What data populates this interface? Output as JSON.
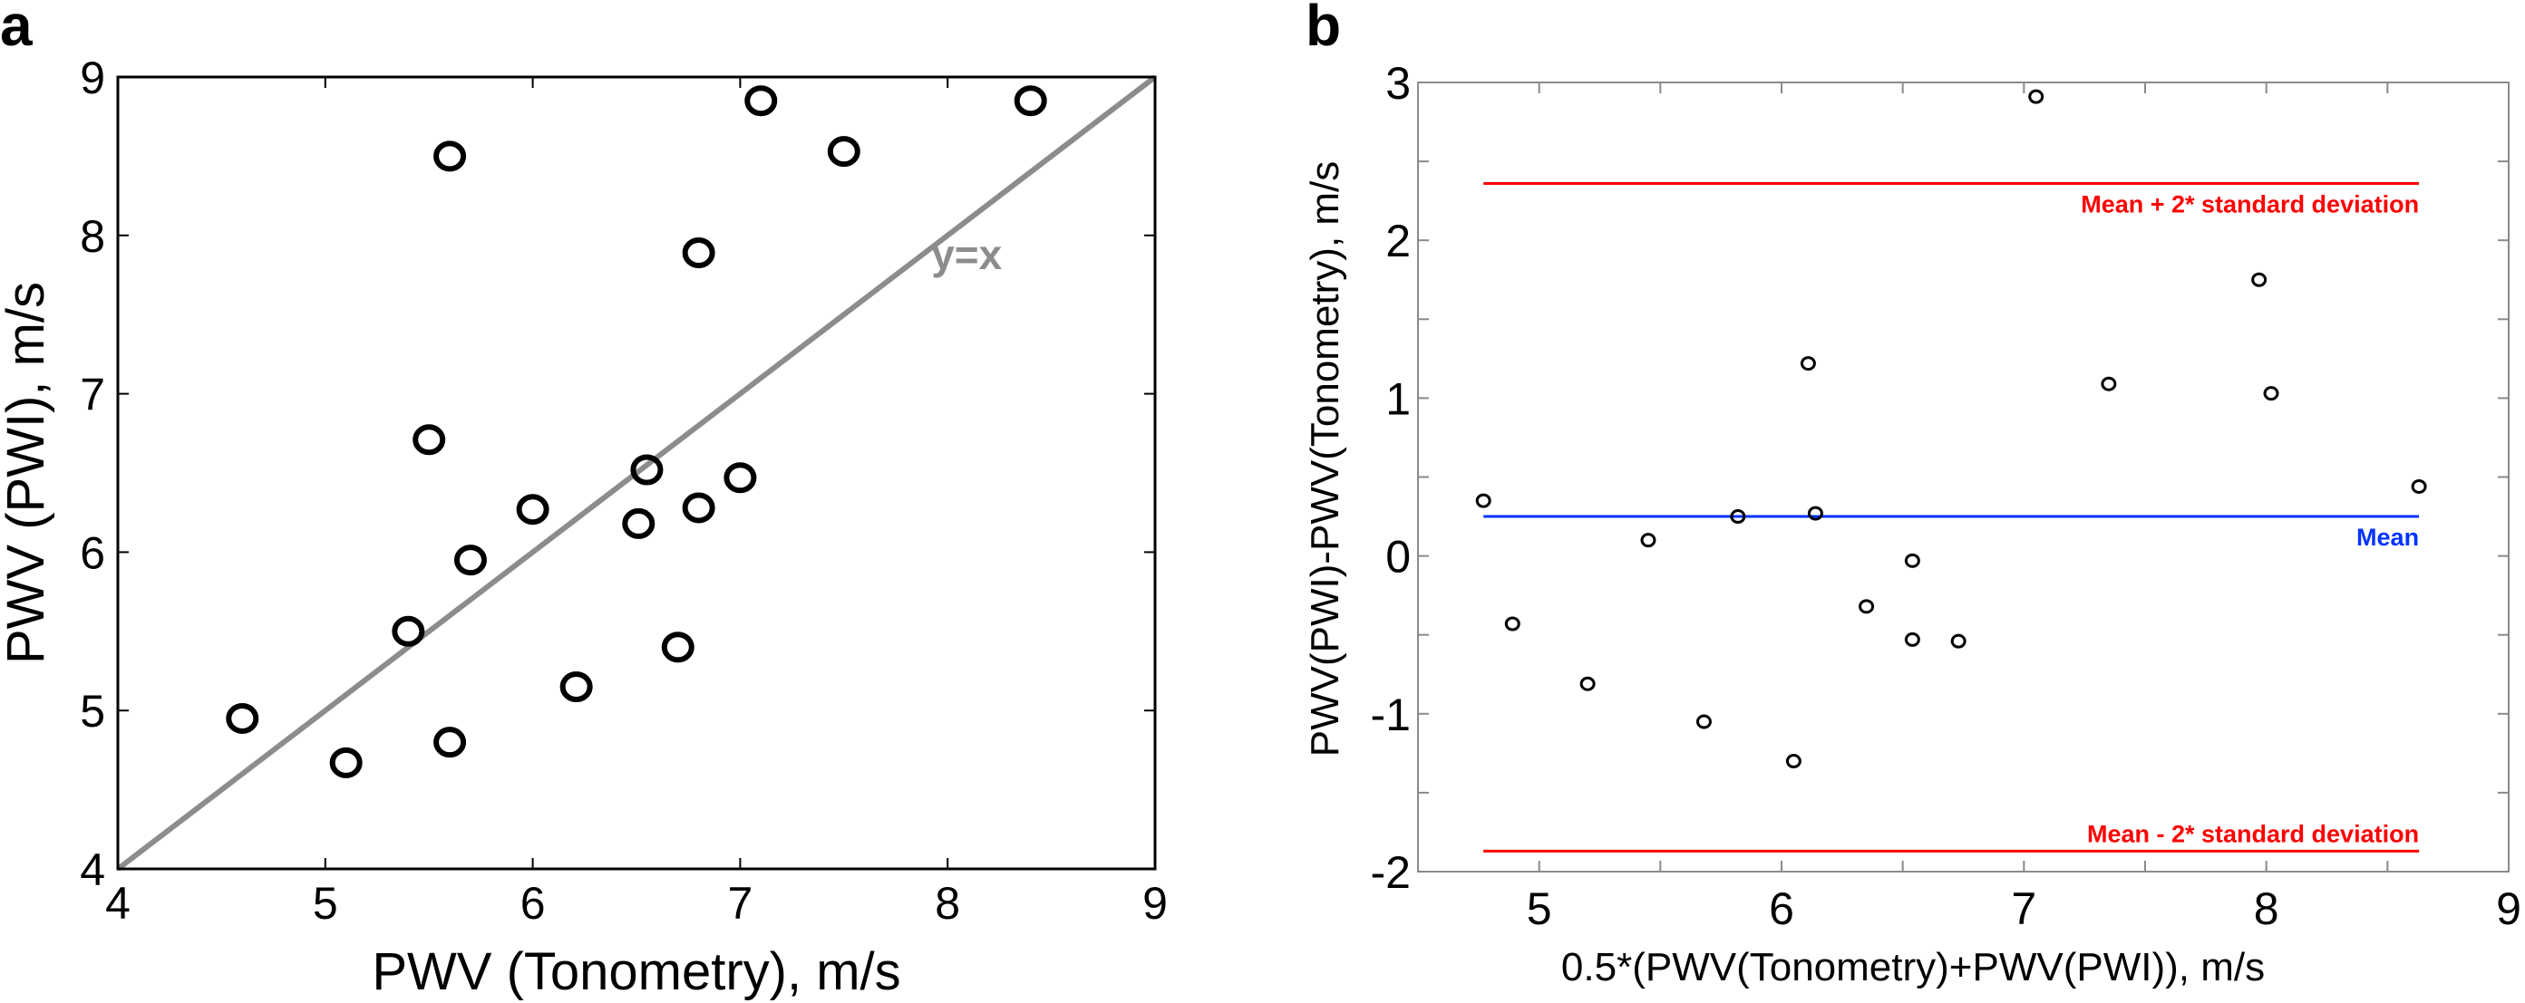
{
  "chart_data": [
    {
      "panel": "a",
      "type": "scatter",
      "title": "",
      "xlabel": "PWV (Tonometry), m/s",
      "ylabel": "PWV (PWI), m/s",
      "xlim": [
        4,
        9
      ],
      "ylim": [
        4,
        9
      ],
      "xticks": [
        "4",
        "5",
        "6",
        "7",
        "8",
        "9"
      ],
      "yticks": [
        "4",
        "5",
        "6",
        "7",
        "8",
        "9"
      ],
      "grid": false,
      "reference_line": {
        "label": "y=x",
        "slope": 1,
        "intercept": 0,
        "color": "#8c8c8c",
        "label_at": [
          8.0,
          7.88
        ]
      },
      "series": [
        {
          "name": "subjects",
          "marker": "open-circle",
          "color": "#000000",
          "points": [
            [
              4.6,
              4.95
            ],
            [
              5.1,
              4.67
            ],
            [
              5.4,
              5.5
            ],
            [
              5.5,
              6.71
            ],
            [
              5.6,
              8.5
            ],
            [
              5.6,
              4.8
            ],
            [
              5.7,
              5.95
            ],
            [
              6.0,
              6.27
            ],
            [
              6.21,
              5.15
            ],
            [
              6.51,
              6.18
            ],
            [
              6.55,
              6.52
            ],
            [
              6.7,
              5.4
            ],
            [
              6.8,
              7.89
            ],
            [
              6.8,
              6.28
            ],
            [
              7.0,
              6.47
            ],
            [
              7.1,
              8.85
            ],
            [
              7.5,
              8.53
            ],
            [
              8.4,
              8.85
            ]
          ]
        }
      ]
    },
    {
      "panel": "b",
      "type": "scatter",
      "title": "",
      "xlabel": "0.5*(PWV(Tonometry)+PWV(PWI)), m/s",
      "ylabel": "PWV(PWI)-PWV(Tonometry), m/s",
      "xlim": [
        4.5,
        9
      ],
      "ylim": [
        -2,
        3
      ],
      "xticks": [
        "5",
        "6",
        "7",
        "8",
        "9"
      ],
      "yticks": [
        "-2",
        "-1",
        "0",
        "1",
        "2",
        "3"
      ],
      "grid": false,
      "reference_lines": [
        {
          "label": "Mean + 2* standard deviation",
          "y": 2.36,
          "x_range": [
            4.77,
            8.63
          ],
          "color": "#ff0000"
        },
        {
          "label": "Mean",
          "y": 0.25,
          "x_range": [
            4.77,
            8.63
          ],
          "color": "#0033ff"
        },
        {
          "label": "Mean - 2* standard deviation",
          "y": -1.87,
          "x_range": [
            4.77,
            8.63
          ],
          "color": "#ff0000"
        }
      ],
      "series": [
        {
          "name": "differences",
          "marker": "open-circle",
          "color": "#000000",
          "points": [
            [
              4.77,
              0.35
            ],
            [
              4.89,
              -0.43
            ],
            [
              5.2,
              -0.81
            ],
            [
              5.45,
              0.1
            ],
            [
              5.68,
              -1.05
            ],
            [
              5.82,
              0.25
            ],
            [
              6.05,
              -1.3
            ],
            [
              6.11,
              1.22
            ],
            [
              6.14,
              0.27
            ],
            [
              6.35,
              -0.32
            ],
            [
              6.54,
              -0.03
            ],
            [
              6.54,
              -0.53
            ],
            [
              6.73,
              -0.54
            ],
            [
              7.05,
              2.91
            ],
            [
              7.35,
              1.09
            ],
            [
              7.97,
              1.75
            ],
            [
              8.02,
              1.03
            ],
            [
              8.63,
              0.44
            ]
          ]
        }
      ]
    }
  ],
  "panels": {
    "a_letter": "a",
    "b_letter": "b"
  }
}
